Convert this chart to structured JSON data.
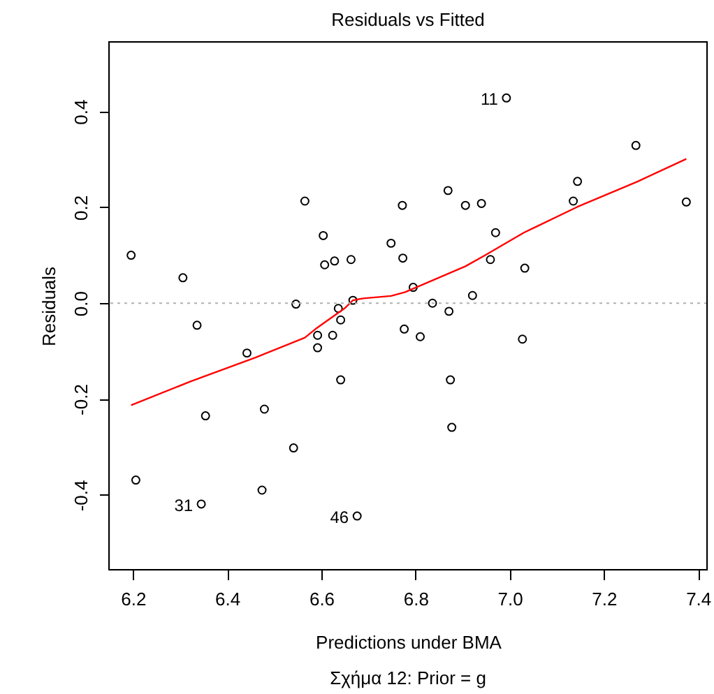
{
  "chart_data": {
    "type": "scatter",
    "title": "Residuals vs Fitted",
    "xlabel": "Predictions under BMA",
    "ylabel": "Residuals",
    "xlim": [
      6.149,
      7.419
    ],
    "ylim": [
      -0.556,
      0.545
    ],
    "xticks": [
      6.2,
      6.4,
      6.6,
      6.8,
      {
        "value": 7,
        "label": "7.0"
      },
      7.2,
      7.4
    ],
    "yticks": [
      -0.4,
      -0.2,
      {
        "value": 0,
        "label": "0.0"
      },
      0.2,
      0.4
    ],
    "grid": false,
    "marker": "circle",
    "series": [
      {
        "color": "#000000",
        "x": [
          6.196,
          6.306,
          6.336,
          6.565,
          6.604,
          6.607,
          6.628,
          6.663,
          6.546,
          6.636,
          6.641,
          6.667,
          6.748,
          6.772,
          6.773,
          6.993,
          7.268,
          7.375,
          7.144,
          7.135,
          6.869,
          6.906,
          6.94,
          6.97,
          6.959,
          7.032,
          6.795,
          6.836,
          6.921,
          6.871,
          6.776,
          6.81,
          7.027,
          6.874,
          6.877,
          6.442,
          6.592,
          6.592,
          6.624,
          6.641,
          6.354,
          6.479,
          6.541,
          6.206,
          6.345,
          6.474,
          6.676
        ],
        "values": [
          0.1,
          0.053,
          -0.046,
          0.213,
          0.141,
          0.08,
          0.088,
          0.091,
          -0.002,
          -0.011,
          -0.035,
          0.006,
          0.125,
          0.204,
          0.094,
          0.428,
          0.329,
          0.211,
          0.254,
          0.213,
          0.235,
          0.204,
          0.208,
          0.147,
          0.091,
          0.073,
          0.033,
          0.0,
          0.016,
          -0.017,
          -0.054,
          -0.07,
          -0.075,
          -0.16,
          -0.259,
          -0.104,
          -0.067,
          -0.093,
          -0.067,
          -0.16,
          -0.235,
          -0.221,
          -0.302,
          -0.369,
          -0.419,
          -0.39,
          -0.444
        ]
      },
      {
        "type": "line",
        "color": "#ff0000",
        "marker": "none",
        "line_style": "solid",
        "x": [
          6.196,
          6.323,
          6.461,
          6.565,
          6.59,
          6.649,
          6.667,
          6.689,
          6.748,
          6.778,
          6.906,
          6.946,
          7.03,
          7.144,
          7.272,
          7.375
        ],
        "values": [
          -0.213,
          -0.163,
          -0.113,
          -0.072,
          -0.052,
          -0.011,
          0.006,
          0.01,
          0.015,
          0.023,
          0.077,
          0.099,
          0.147,
          0.201,
          0.254,
          0.301
        ]
      }
    ],
    "ref_lines": [
      {
        "axis": "y",
        "value": 0,
        "color": "#b0b0b0",
        "line_style": "dotted"
      }
    ],
    "annotations": [
      {
        "text": "11",
        "x": 6.993,
        "y": 0.428
      },
      {
        "text": "31",
        "x": 6.345,
        "y": -0.419
      },
      {
        "text": "46",
        "x": 6.676,
        "y": -0.444
      },
      "Σχήμα 12: Prior = g"
    ]
  }
}
